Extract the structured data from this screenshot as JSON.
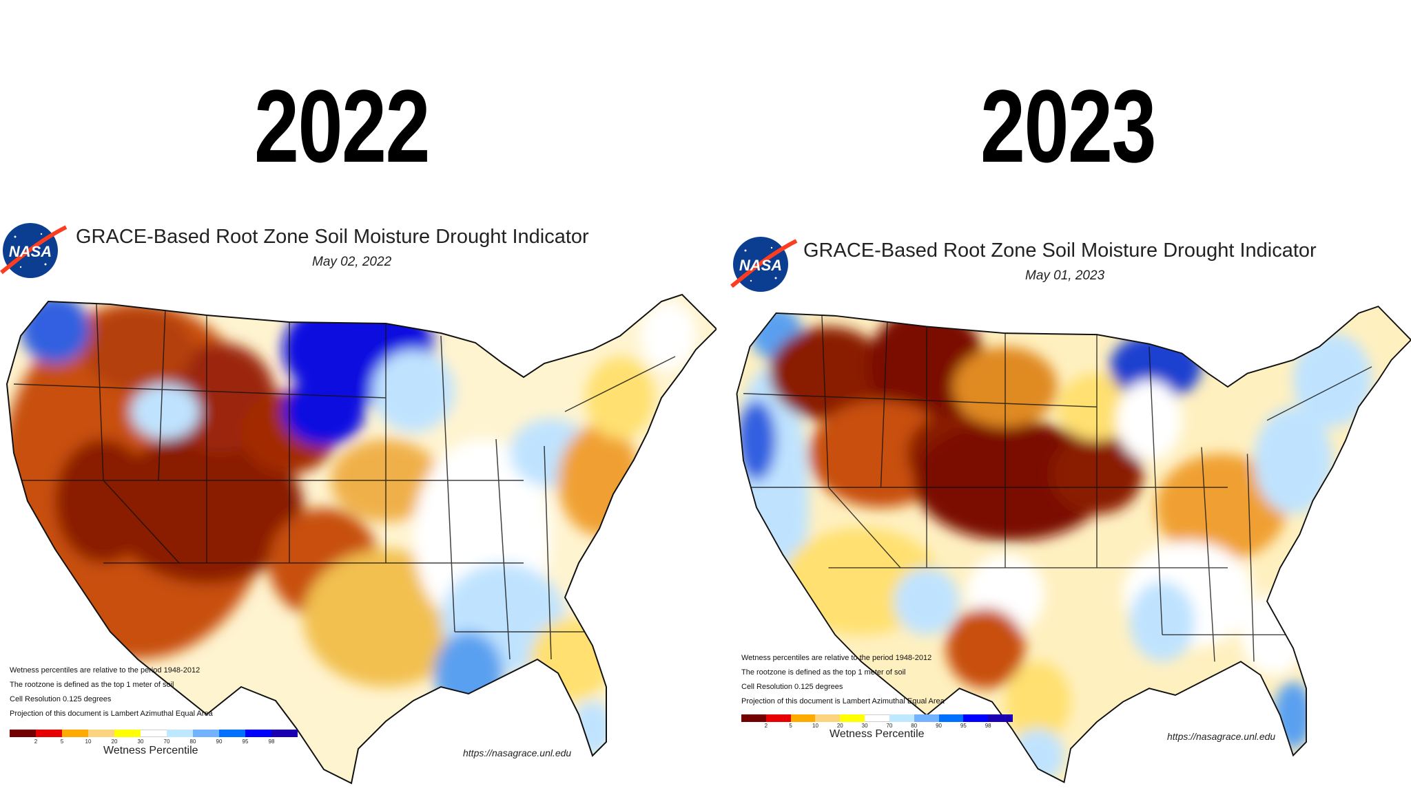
{
  "headings": {
    "left_year": "2022",
    "right_year": "2023"
  },
  "logo": {
    "text": "NASA"
  },
  "maps": [
    {
      "title": "GRACE-Based Root Zone Soil  Moisture Drought Indicator",
      "date": "May 02, 2022",
      "notes": [
        "Wetness percentiles are relative to the period 1948-2012",
        "The rootzone is defined as the top 1 meter of soil",
        "Cell Resolution 0.125 degrees",
        "Projection of this document is Lambert Azimuthal Equal Area"
      ],
      "legend_title": "Wetness Percentile",
      "url": "https://nasagrace.unl.edu",
      "dominant_condition": "dry west, wet northern plains and east"
    },
    {
      "title": "GRACE-Based Root Zone Soil  Moisture Drought Indicator",
      "date": "May 01, 2023",
      "notes": [
        "Wetness percentiles are relative to the period 1948-2012",
        "The rootzone is defined as the top 1 meter of soil",
        "Cell Resolution 0.125 degrees",
        "Projection of this document is Lambert Azimuthal Equal Area"
      ],
      "legend_title": "Wetness Percentile",
      "url": "https://nasagrace.unl.edu",
      "dominant_condition": "dry central plains and northern Rockies"
    }
  ],
  "legend": {
    "ticks": [
      "2",
      "5",
      "10",
      "20",
      "30",
      "70",
      "80",
      "90",
      "95",
      "98"
    ],
    "colors": [
      "#730000",
      "#e60000",
      "#ffaa00",
      "#fcd37f",
      "#ffff00",
      "#ffffff",
      "#bee8ff",
      "#73b2ff",
      "#0070ff",
      "#0000ff",
      "#1a00b0"
    ]
  },
  "palette": {
    "dry_extreme": "#7a0a00",
    "dry": "#c8500a",
    "moderate": "#f0a030",
    "mild": "#ffe070",
    "normal": "#ffffff",
    "wet": "#bfe3ff",
    "very_wet": "#5aa0f0",
    "extreme_wet": "#1010e0"
  }
}
